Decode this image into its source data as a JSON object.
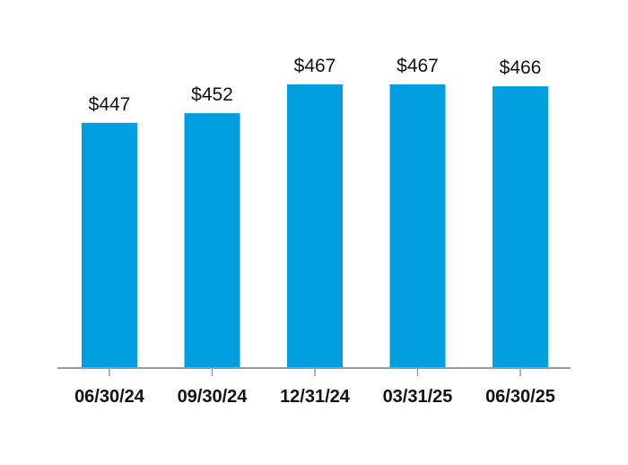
{
  "chart_data": {
    "type": "bar",
    "categories": [
      "06/30/24",
      "09/30/24",
      "12/31/24",
      "03/31/25",
      "06/30/25"
    ],
    "values": [
      447,
      452,
      467,
      467,
      466
    ],
    "data_labels": [
      "$447",
      "$452",
      "$467",
      "$467",
      "$466"
    ],
    "title": "",
    "xlabel": "",
    "ylabel": "",
    "ylim": [
      330,
      470
    ],
    "grid": false,
    "legend": "none",
    "colors": {
      "bar": "#009fdf",
      "axis": "#999999",
      "text": "#111111"
    }
  }
}
